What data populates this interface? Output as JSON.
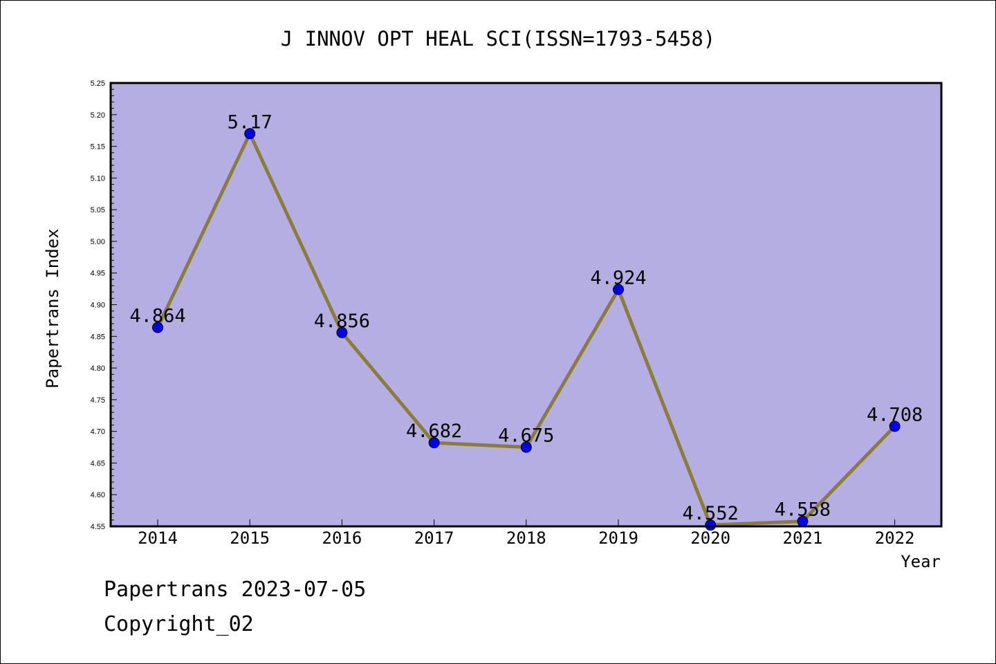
{
  "footer": {
    "line1": "Papertrans 2023-07-05",
    "line2": "Copyright_02"
  },
  "colors": {
    "plot_background": "#b5aee2",
    "line": "#8c7c3a",
    "marker": "#0000ee"
  },
  "chart_data": {
    "type": "line",
    "title": "J INNOV OPT HEAL SCI(ISSN=1793-5458)",
    "xlabel": "Year",
    "ylabel": "Papertrans Index",
    "categories": [
      "2014",
      "2015",
      "2016",
      "2017",
      "2018",
      "2019",
      "2020",
      "2021",
      "2022"
    ],
    "values": [
      4.864,
      5.17,
      4.856,
      4.682,
      4.675,
      4.924,
      4.552,
      4.558,
      4.708
    ],
    "data_labels": [
      "4.864",
      "5.17",
      "4.856",
      "4.682",
      "4.675",
      "4.924",
      "4.552",
      "4.558",
      "4.708"
    ],
    "ylim": [
      4.55,
      5.25
    ],
    "yticks": [
      "4.55",
      "4.60",
      "4.65",
      "4.70",
      "4.75",
      "4.80",
      "4.85",
      "4.90",
      "4.95",
      "5.00",
      "5.05",
      "5.10",
      "5.15",
      "5.20",
      "5.25"
    ],
    "grid": false,
    "legend": "none"
  }
}
